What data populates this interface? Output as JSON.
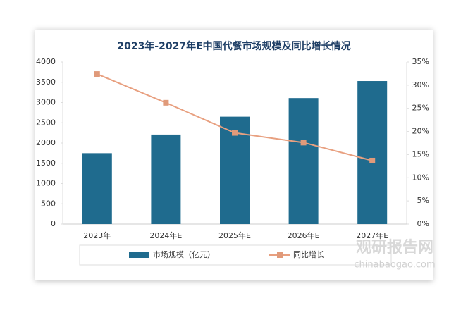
{
  "chart_data": {
    "type": "bar-line",
    "title": "2023年-2027年E中国代餐市场规模及同比增长情况",
    "categories": [
      "2023年",
      "2024年E",
      "2025年E",
      "2026年E",
      "2027年E"
    ],
    "series": [
      {
        "name": "市场规模（亿元）",
        "color": "#1f6b8e",
        "type": "bar",
        "values": [
          1750,
          2210,
          2650,
          3110,
          3530
        ]
      },
      {
        "name": "同比增长",
        "color": "#e8a080",
        "type": "line",
        "axis": "y2",
        "values": [
          32.4,
          26.2,
          19.7,
          17.6,
          13.7
        ]
      }
    ],
    "ylim": [
      0,
      4000
    ],
    "yticks": [
      0,
      500,
      1000,
      1500,
      2000,
      2500,
      3000,
      3500,
      4000
    ],
    "y2lim": [
      0,
      35
    ],
    "y2ticks": [
      {
        "value": 0,
        "label": "0%"
      },
      {
        "value": 5,
        "label": "5%"
      },
      {
        "value": 10,
        "label": "10%"
      },
      {
        "value": 15,
        "label": "15%"
      },
      {
        "value": 20,
        "label": "20%"
      },
      {
        "value": 25,
        "label": "25%"
      },
      {
        "value": 30,
        "label": "30%"
      },
      {
        "value": 35,
        "label": "35%"
      }
    ],
    "grid": false,
    "watermark": [
      "观研报告网",
      "chinabaogao.com"
    ]
  }
}
